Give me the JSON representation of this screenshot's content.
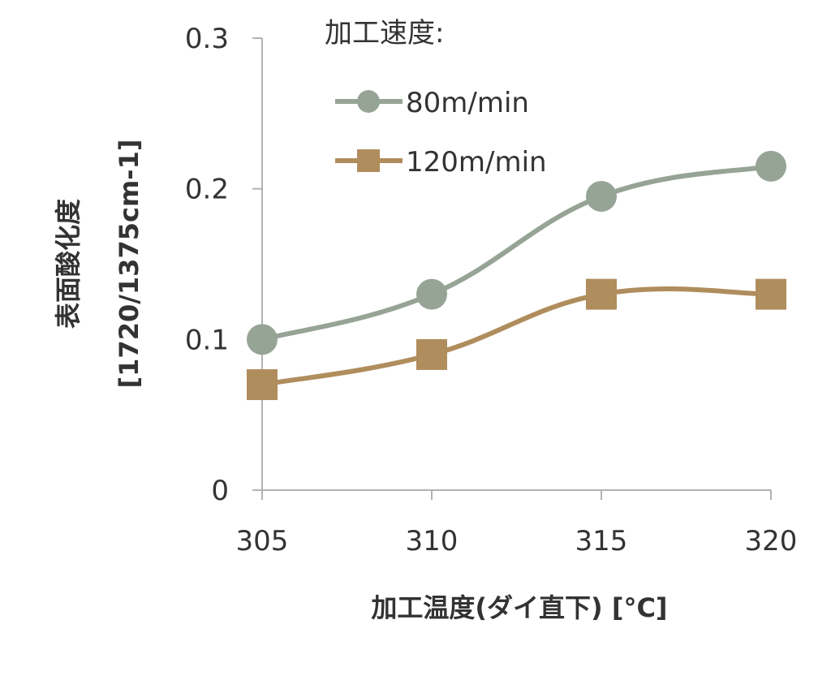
{
  "chart_data": {
    "type": "line",
    "x": [
      "305",
      "310",
      "315",
      "320"
    ],
    "xlabel": "加工温度(ダイ直下) [°C]",
    "ylabel": "表面酸化度",
    "ylabel_sub": "[1720/1375cm-1]",
    "ylim": [
      0,
      0.3
    ],
    "yticks": [
      "0",
      "0.1",
      "0.2",
      "0.3"
    ],
    "grid": false,
    "legend_title": "加工速度:",
    "legend_position": "top-right",
    "series": [
      {
        "name": "80m/min",
        "values": [
          0.1,
          0.13,
          0.195,
          0.215
        ],
        "color": "#96a496",
        "marker": "circle"
      },
      {
        "name": "120m/min",
        "values": [
          0.07,
          0.09,
          0.13,
          0.13
        ],
        "color": "#b08d5d",
        "marker": "square"
      }
    ]
  }
}
